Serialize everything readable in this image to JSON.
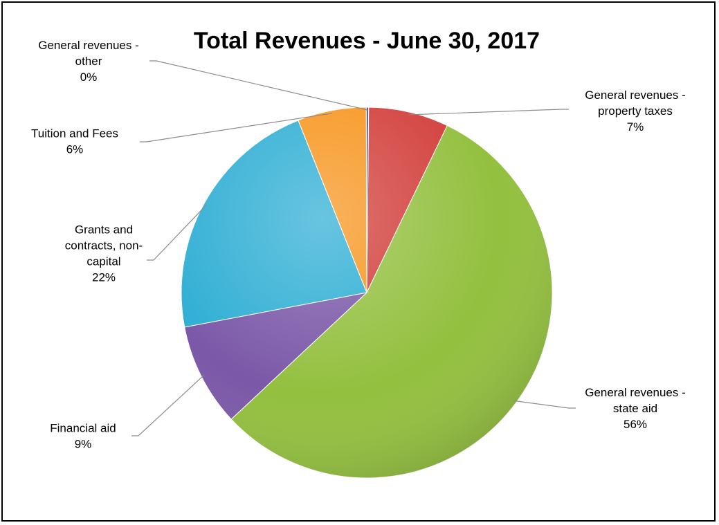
{
  "chart_data": {
    "type": "pie",
    "title": "Total Revenues - June 30, 2017",
    "slices": [
      {
        "label": "General revenues - property taxes",
        "label_lines": [
          "General revenues -",
          "property taxes"
        ],
        "pct_label": "7%",
        "value": 7,
        "color": "#d23f3b"
      },
      {
        "label": "General revenues - state aid",
        "label_lines": [
          "General revenues -",
          "state aid"
        ],
        "pct_label": "56%",
        "value": 56,
        "color": "#93c03f"
      },
      {
        "label": "Financial aid",
        "label_lines": [
          "Financial aid"
        ],
        "pct_label": "9%",
        "value": 9,
        "color": "#7b58a8"
      },
      {
        "label": "Grants and contracts, non-capital",
        "label_lines": [
          "Grants and",
          "contracts, non-",
          "capital"
        ],
        "pct_label": "22%",
        "value": 22,
        "color": "#2eaed4"
      },
      {
        "label": "Tuition and Fees",
        "label_lines": [
          "Tuition and Fees"
        ],
        "pct_label": "6%",
        "value": 6,
        "color": "#f7951e"
      },
      {
        "label": "General revenues - other",
        "label_lines": [
          "General revenues -",
          "other"
        ],
        "pct_label": "0%",
        "value": 0.2,
        "color": "#3a5f9e"
      }
    ]
  }
}
